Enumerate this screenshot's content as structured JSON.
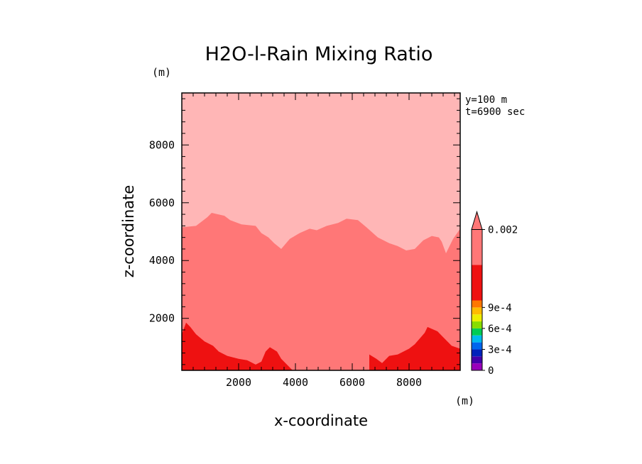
{
  "chart_data": {
    "type": "heatmap",
    "title": "H2O-l-Rain Mixing Ratio",
    "xlabel": "x-coordinate",
    "ylabel": "z-coordinate",
    "x_unit": "(m)",
    "y_unit": "(m)",
    "annotations": [
      "y=100 m",
      "t=6900 sec"
    ],
    "xlim": [
      0,
      9800
    ],
    "ylim": [
      200,
      9800
    ],
    "x_ticks": [
      2000,
      4000,
      6000,
      8000
    ],
    "y_ticks": [
      2000,
      4000,
      6000,
      8000
    ],
    "grid": false,
    "colorbar": {
      "placement": "right",
      "boundaries": [
        0,
        0.0001,
        0.0002,
        0.0003,
        0.0004,
        0.0005,
        0.0006,
        0.0007,
        0.0008,
        0.0009,
        0.001,
        0.002
      ],
      "colors": [
        "#9900bb",
        "#4400aa",
        "#0022bb",
        "#0066ee",
        "#00bbee",
        "#00cc55",
        "#88dd00",
        "#eeee00",
        "#ffbb00",
        "#ff7700",
        "#ee1111",
        "#ff7777",
        "#ffb6b6"
      ],
      "labels": [
        {
          "value": 0,
          "text": "0"
        },
        {
          "value": 0.0003,
          "text": "3e-4"
        },
        {
          "value": 0.0006,
          "text": "6e-4"
        },
        {
          "value": 0.0009,
          "text": "9e-4"
        },
        {
          "value": 0.002,
          "text": "0.002"
        }
      ],
      "extend": "max"
    },
    "contour_fills": [
      {
        "name": "upper-pale-region",
        "color": "#ffb6b6",
        "polygon": [
          [
            0,
            9800
          ],
          [
            9800,
            9800
          ],
          [
            9800,
            200
          ],
          [
            0,
            200
          ]
        ]
      },
      {
        "name": "middle-region",
        "color": "#ff7777",
        "polygon": [
          [
            0,
            200
          ],
          [
            0,
            5150
          ],
          [
            500,
            5200
          ],
          [
            900,
            5500
          ],
          [
            1050,
            5650
          ],
          [
            1500,
            5550
          ],
          [
            1700,
            5400
          ],
          [
            2100,
            5250
          ],
          [
            2600,
            5200
          ],
          [
            2800,
            4950
          ],
          [
            3050,
            4800
          ],
          [
            3250,
            4600
          ],
          [
            3500,
            4400
          ],
          [
            3800,
            4750
          ],
          [
            4150,
            4950
          ],
          [
            4500,
            5100
          ],
          [
            4750,
            5050
          ],
          [
            5100,
            5200
          ],
          [
            5500,
            5300
          ],
          [
            5800,
            5450
          ],
          [
            6200,
            5400
          ],
          [
            6500,
            5150
          ],
          [
            6900,
            4800
          ],
          [
            7300,
            4600
          ],
          [
            7600,
            4500
          ],
          [
            7900,
            4350
          ],
          [
            8200,
            4400
          ],
          [
            8500,
            4700
          ],
          [
            8800,
            4850
          ],
          [
            9050,
            4800
          ],
          [
            9150,
            4650
          ],
          [
            9300,
            4250
          ],
          [
            9550,
            4750
          ],
          [
            9800,
            5100
          ],
          [
            9800,
            200
          ]
        ]
      },
      {
        "name": "lower-region-left",
        "color": "#ee1111",
        "polygon": [
          [
            0,
            200
          ],
          [
            0,
            1450
          ],
          [
            150,
            1850
          ],
          [
            300,
            1700
          ],
          [
            500,
            1450
          ],
          [
            800,
            1200
          ],
          [
            1100,
            1050
          ],
          [
            1300,
            850
          ],
          [
            1600,
            700
          ],
          [
            2000,
            600
          ],
          [
            2300,
            550
          ],
          [
            2600,
            400
          ],
          [
            2800,
            500
          ],
          [
            2950,
            850
          ],
          [
            3100,
            1000
          ],
          [
            3350,
            850
          ],
          [
            3500,
            600
          ],
          [
            3700,
            400
          ],
          [
            3900,
            200
          ]
        ]
      },
      {
        "name": "lower-region-right",
        "color": "#ee1111",
        "polygon": [
          [
            6600,
            200
          ],
          [
            6600,
            750
          ],
          [
            6850,
            600
          ],
          [
            7050,
            450
          ],
          [
            7300,
            700
          ],
          [
            7600,
            750
          ],
          [
            8000,
            950
          ],
          [
            8200,
            1100
          ],
          [
            8550,
            1500
          ],
          [
            8650,
            1700
          ],
          [
            9000,
            1550
          ],
          [
            9200,
            1350
          ],
          [
            9500,
            1050
          ],
          [
            9800,
            950
          ],
          [
            9800,
            200
          ]
        ]
      }
    ]
  }
}
